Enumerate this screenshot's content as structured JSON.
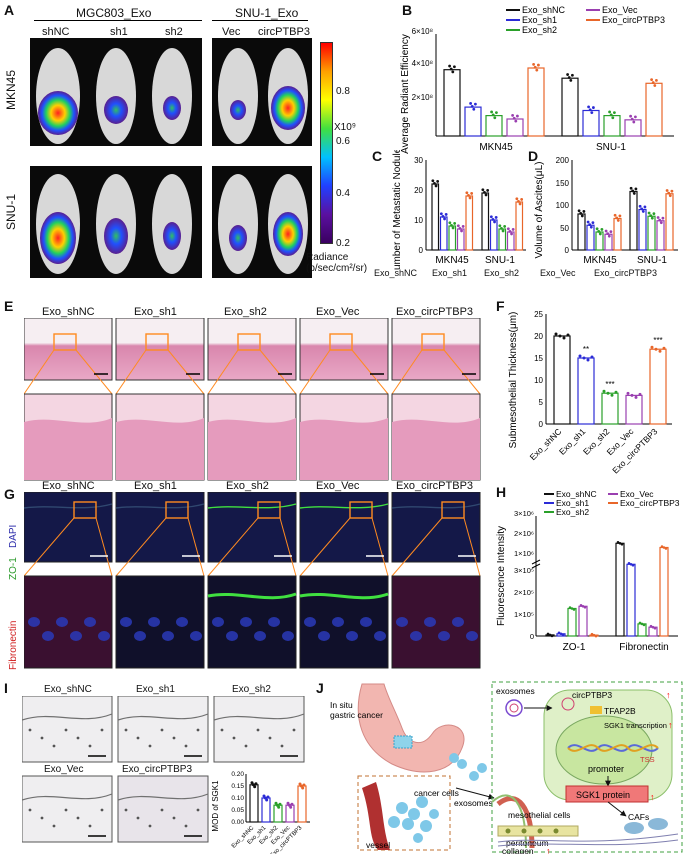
{
  "panel_A": {
    "label": "A",
    "group1": "MGC803_Exo",
    "group2": "SNU-1_Exo",
    "cols": [
      "shNC",
      "sh1",
      "sh2",
      "Vec",
      "circPTBP3"
    ],
    "rows": [
      "MKN45",
      "SNU-1"
    ],
    "colorbar_ticks": [
      "0.8",
      "0.6",
      "0.4",
      "0.2"
    ],
    "colorbar_scale": "X10⁹",
    "colorbar_unit": "Radiance (p/sec/cm²/sr)"
  },
  "panel_B": {
    "label": "B",
    "ylabel": "Average Radiant Efficiency",
    "yticks": [
      "2×10⁸",
      "4×10⁸",
      "6×10⁸"
    ],
    "legend": [
      "Exo_shNC",
      "Exo_sh1",
      "Exo_sh2",
      "Exo_Vec",
      "Exo_circPTBP3"
    ],
    "categories": [
      "MKN45",
      "SNU-1"
    ],
    "sig": "***"
  },
  "panel_C": {
    "label": "C",
    "ylabel": "Number of Metastatic Nodules",
    "yticks": [
      "0",
      "10",
      "20",
      "30"
    ],
    "categories": [
      "MKN45",
      "SNU-1"
    ]
  },
  "panel_D": {
    "label": "D",
    "ylabel": "Volume of Ascites(μL)",
    "yticks": [
      "0",
      "50",
      "100",
      "150",
      "200"
    ],
    "categories": [
      "MKN45",
      "SNU-1"
    ]
  },
  "legend_CD": [
    "Exo_shNC",
    "Exo_sh1",
    "Exo_sh2",
    "Exo_Vec",
    "Exo_circPTBP3"
  ],
  "panel_E": {
    "label": "E",
    "cols": [
      "Exo_shNC",
      "Exo_sh1",
      "Exo_sh2",
      "Exo_Vec",
      "Exo_circPTBP3"
    ]
  },
  "panel_F": {
    "label": "F",
    "ylabel": "Submesothelial Thickness(μm)",
    "yticks": [
      "0",
      "5",
      "10",
      "15",
      "20",
      "25"
    ],
    "categories": [
      "Exo_shNC",
      "Exo_sh1",
      "Exo_sh2",
      "Exo_Vec",
      "Exo_circPTBP3"
    ],
    "sig": [
      "",
      "**",
      "***",
      "",
      "***"
    ]
  },
  "panel_G": {
    "label": "G",
    "cols": [
      "Exo_shNC",
      "Exo_sh1",
      "Exo_sh2",
      "Exo_Vec",
      "Exo_circPTBP3"
    ],
    "side_top": [
      "ZO-1",
      "DAPI"
    ],
    "side_bottom": "Fibronectin"
  },
  "panel_H": {
    "label": "H",
    "ylabel": "Fluorescence Intensity",
    "yticks": [
      "0",
      "1×10⁵",
      "2×10⁵",
      "3×10⁵",
      "1×10⁶",
      "2×10⁶",
      "3×10⁶"
    ],
    "legend": [
      "Exo_shNC",
      "Exo_sh1",
      "Exo_sh2",
      "Exo_Vec",
      "Exo_circPTBP3"
    ],
    "categories": [
      "ZO-1",
      "Fibronectin"
    ]
  },
  "panel_I": {
    "label": "I",
    "cols_top": [
      "Exo_shNC",
      "Exo_sh1",
      "Exo_sh2"
    ],
    "cols_bottom": [
      "Exo_Vec",
      "Exo_circPTBP3"
    ],
    "ylabel": "MOD of SGK1",
    "yticks": [
      "0.00",
      "0.05",
      "0.10",
      "0.15",
      "0.20"
    ],
    "categories": [
      "Exo_shNC",
      "Exo_sh1",
      "Exo_sh2",
      "Exo_Vec",
      "Exo_circPTBP3"
    ]
  },
  "panel_J": {
    "label": "J",
    "in_situ": "In situ\ngastric cancer",
    "cancer_cells": "cancer cells",
    "exosomes1": "exosomes",
    "vessel": "vessel",
    "peritoneum": "peritoneum",
    "exosomes2": "exosomes",
    "circ": "circPTBP3",
    "tfap": "TFAP2B",
    "sgk_tx": "SGK1 transcription",
    "tss": "TSS",
    "promoter": "promoter",
    "sgk_protein": "SGK1 protein",
    "meso": "mesothelial cells",
    "cafs": "CAFs",
    "collagen": "collagen"
  },
  "colors": {
    "shNC": "#111111",
    "sh1": "#2b2bd6",
    "sh2": "#2aa02a",
    "Vec": "#9a3fb0",
    "circ": "#e8662a",
    "he": "#e8a9c2",
    "arrow": "#ff0000"
  },
  "chart_data": [
    {
      "type": "bar",
      "title": "",
      "ylabel": "Average Radiant Efficiency",
      "categories": [
        "MKN45",
        "SNU-1"
      ],
      "series": [
        {
          "name": "Exo_shNC",
          "values": [
            390000000.0,
            340000000.0
          ]
        },
        {
          "name": "Exo_sh1",
          "values": [
            170000000.0,
            150000000.0
          ]
        },
        {
          "name": "Exo_sh2",
          "values": [
            120000000.0,
            120000000.0
          ]
        },
        {
          "name": "Exo_Vec",
          "values": [
            100000000.0,
            95000000.0
          ]
        },
        {
          "name": "Exo_circPTBP3",
          "values": [
            400000000.0,
            310000000.0
          ]
        }
      ],
      "ylim": [
        0,
        600000000.0
      ]
    },
    {
      "type": "bar",
      "title": "",
      "ylabel": "Number of Metastatic Nodules",
      "categories": [
        "MKN45",
        "SNU-1"
      ],
      "series": [
        {
          "name": "Exo_shNC",
          "values": [
            22,
            19
          ]
        },
        {
          "name": "Exo_sh1",
          "values": [
            11,
            10
          ]
        },
        {
          "name": "Exo_sh2",
          "values": [
            8,
            7
          ]
        },
        {
          "name": "Exo_Vec",
          "values": [
            7,
            6
          ]
        },
        {
          "name": "Exo_circPTBP3",
          "values": [
            18,
            16
          ]
        }
      ],
      "ylim": [
        0,
        30
      ]
    },
    {
      "type": "bar",
      "title": "",
      "ylabel": "Volume of Ascites(μL)",
      "categories": [
        "MKN45",
        "SNU-1"
      ],
      "series": [
        {
          "name": "Exo_shNC",
          "values": [
            80,
            130
          ]
        },
        {
          "name": "Exo_sh1",
          "values": [
            55,
            90
          ]
        },
        {
          "name": "Exo_sh2",
          "values": [
            40,
            75
          ]
        },
        {
          "name": "Exo_Vec",
          "values": [
            35,
            65
          ]
        },
        {
          "name": "Exo_circPTBP3",
          "values": [
            70,
            125
          ]
        }
      ],
      "ylim": [
        0,
        200
      ]
    },
    {
      "type": "bar",
      "title": "",
      "ylabel": "Submesothelial Thickness(μm)",
      "categories": [
        "Exo_shNC",
        "Exo_sh1",
        "Exo_sh2",
        "Exo_Vec",
        "Exo_circPTBP3"
      ],
      "values": [
        20,
        15,
        7,
        6.5,
        17
      ],
      "ylim": [
        0,
        25
      ]
    },
    {
      "type": "bar",
      "title": "",
      "ylabel": "Fluorescence Intensity",
      "categories": [
        "ZO-1",
        "Fibronectin"
      ],
      "series": [
        {
          "name": "Exo_shNC",
          "values": [
            5000,
            1700000
          ]
        },
        {
          "name": "Exo_sh1",
          "values": [
            10000,
            700000
          ]
        },
        {
          "name": "Exo_sh2",
          "values": [
            125000,
            55000
          ]
        },
        {
          "name": "Exo_Vec",
          "values": [
            135000,
            40000
          ]
        },
        {
          "name": "Exo_circPTBP3",
          "values": [
            4000,
            1500000
          ]
        }
      ]
    },
    {
      "type": "bar",
      "title": "",
      "ylabel": "MOD of SGK1",
      "categories": [
        "Exo_shNC",
        "Exo_sh1",
        "Exo_sh2",
        "Exo_Vec",
        "Exo_circPTBP3"
      ],
      "values": [
        0.155,
        0.1,
        0.07,
        0.07,
        0.15
      ],
      "ylim": [
        0,
        0.2
      ]
    }
  ]
}
